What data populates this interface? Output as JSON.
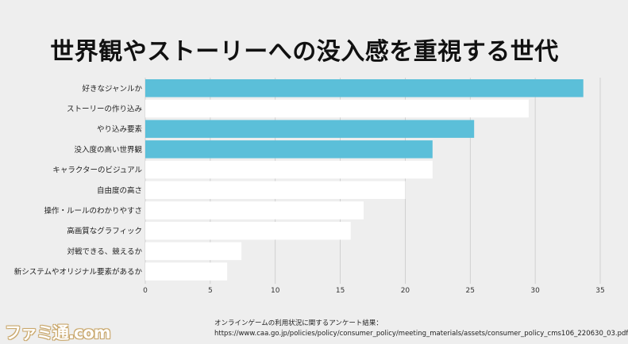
{
  "chart_data": {
    "type": "bar",
    "orientation": "horizontal",
    "title": "世界観やストーリーへの没入感を重視する世代",
    "categories": [
      "好きなジャンルか",
      "ストーリーの作り込み",
      "やり込み要素",
      "没入度の高い世界観",
      "キャラクターのビジュアル",
      "自由度の高さ",
      "操作・ルールのわかりやすさ",
      "高画質なグラフィック",
      "対戦できる、競えるか",
      "新システムやオリジナル要素があるか"
    ],
    "values": [
      33.7,
      29.5,
      25.3,
      22.1,
      22.1,
      20.0,
      16.8,
      15.8,
      7.4,
      6.3
    ],
    "highlighted": [
      true,
      false,
      true,
      true,
      false,
      false,
      false,
      false,
      false,
      false
    ],
    "xlim": [
      0,
      35
    ],
    "xticks": [
      0,
      5,
      10,
      15,
      20,
      25,
      30,
      35
    ],
    "xlabel": "",
    "ylabel": "",
    "grid": true,
    "colors": {
      "highlight": "#5bbfd9",
      "normal": "#ffffff",
      "grid": "#c8c8c8",
      "background": "#eeeeee"
    }
  },
  "source": {
    "line1": "オンラインゲームの利用状況に関するアンケート結果：",
    "line2": "https://www.caa.go.jp/policies/policy/consumer_policy/meeting_materials/assets/consumer_policy_cms106_220630_03.pdf"
  },
  "watermark": "ファミ通.com"
}
